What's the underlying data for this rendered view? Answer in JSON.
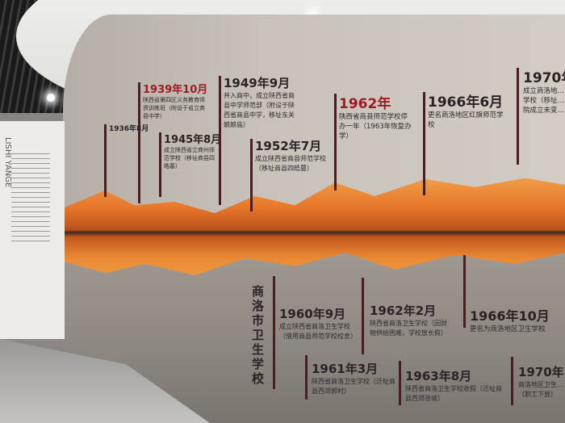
{
  "upper_timeline": [
    {
      "year": "1939年10月",
      "desc": "陕西省第四区义务教育师资训练班（附设于省立商县中学）",
      "color": "red"
    },
    {
      "year": "1945年8月",
      "desc": "成立陕西省立商州师范学校（移址商县四皓墓）"
    },
    {
      "year": "1949年9月",
      "desc": "并入商中，成立陕西省商县中学师范部（附设于陕西省商县中学，移址东关娘娘庙）"
    },
    {
      "year": "1952年7月",
      "desc": "成立陕西省商县师范学校（移址商县四皓墓）"
    },
    {
      "year": "1962年",
      "desc": "陕西省商县师范学校停办一年（1963年恢复办学）",
      "color": "red"
    },
    {
      "year": "1966年6月",
      "desc": "更名商洛地区红旗师范学校"
    },
    {
      "year": "1970年",
      "desc": "成立商洛地…学校（移址…院成立未变…"
    },
    {
      "year": "1936年8月",
      "desc": ""
    }
  ],
  "lower_title": "商洛市卫生学校",
  "lower_timeline": [
    {
      "year": "1960年9月",
      "desc": "成立陕西省商洛卫生学校（借用商县师范学校校舍）"
    },
    {
      "year": "1961年3月",
      "desc": "陕西省商洛卫生学校（迁址商县西郊郭村）"
    },
    {
      "year": "1962年2月",
      "desc": "陕西省商洛卫生学校（因财物供给困难，学校放长假）"
    },
    {
      "year": "1963年8月",
      "desc": "陕西省商洛卫生学校收假（迁址商县西郊张坡）"
    },
    {
      "year": "1966年10月",
      "desc": "更名为商洛地区卫生学校"
    },
    {
      "year": "1970年",
      "desc": "商洛地区卫生…（职工下放）"
    }
  ],
  "side_panel": {
    "vertical_text": "LISHI YANGE"
  },
  "colors": {
    "accent_red": "#9d1b22",
    "bar": "#4a1d22",
    "sunset": "#e7772a"
  }
}
